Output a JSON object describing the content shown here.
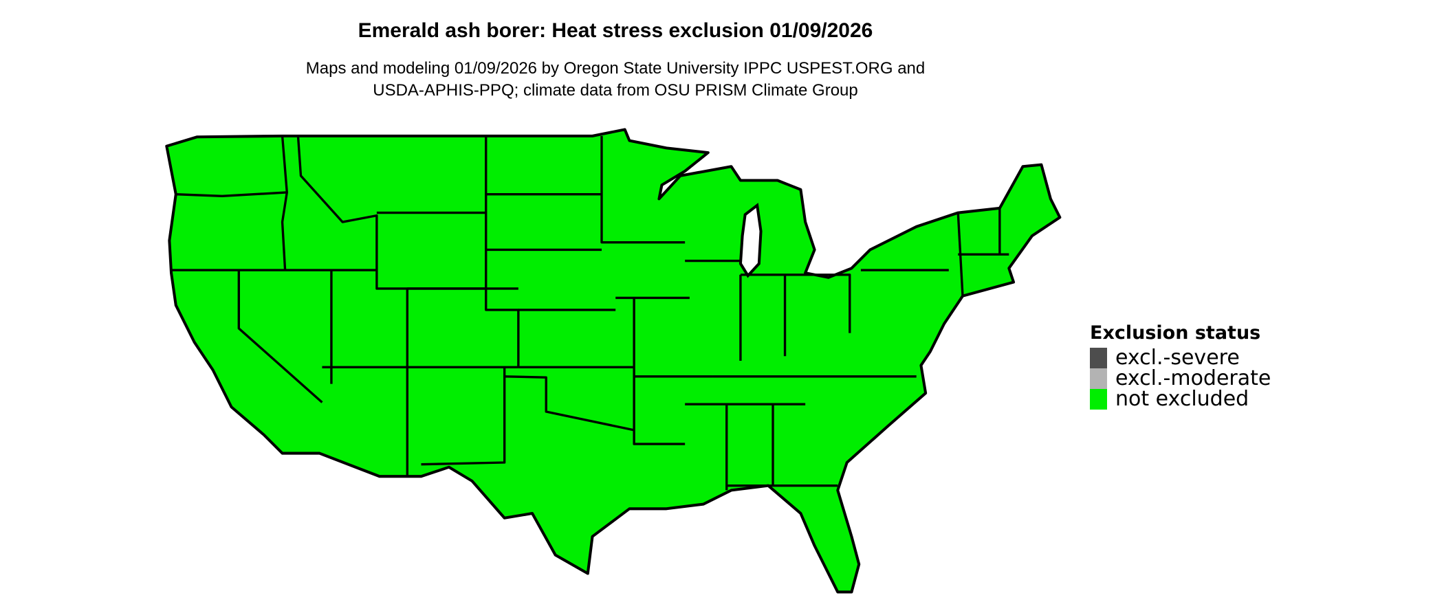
{
  "title": "Emerald ash borer: Heat stress exclusion 01/09/2026",
  "subtitle_lines": [
    "Maps and modeling 01/09/2026 by Oregon State University IPPC USPEST.ORG and",
    "USDA-APHIS-PPQ; climate data from OSU PRISM Climate Group"
  ],
  "map": {
    "region": "Contiguous United States (state boundaries)",
    "fill_status": "not excluded",
    "fill_color": "#00EE00"
  },
  "legend": {
    "title": "Exclusion status",
    "items": [
      {
        "label": "excl.-severe",
        "color": "#4D4D4D"
      },
      {
        "label": "excl.-moderate",
        "color": "#B3B3B3"
      },
      {
        "label": "not excluded",
        "color": "#00EE00"
      }
    ]
  }
}
